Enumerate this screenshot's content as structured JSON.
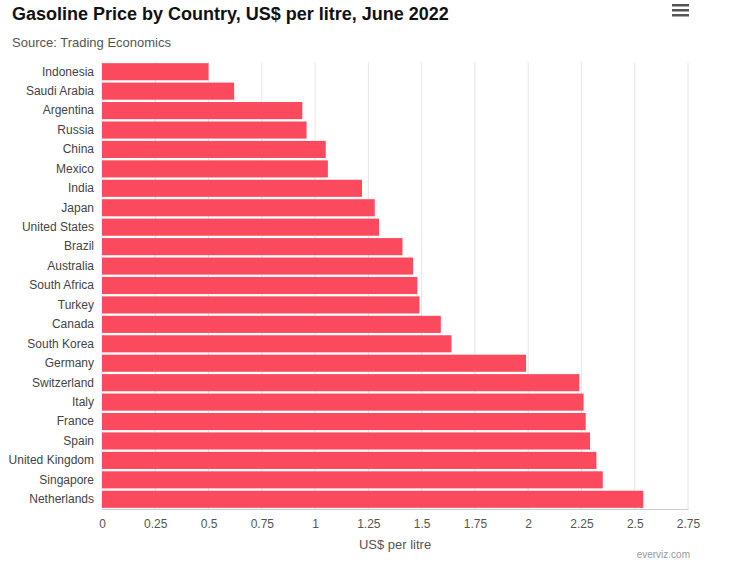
{
  "chart_data": {
    "type": "bar",
    "orientation": "horizontal",
    "title": "Gasoline Price by Country, US$ per litre, June 2022",
    "subtitle": "Source: Trading Economics",
    "x_label": "US$ per litre",
    "credit": "everviz.com",
    "categories": [
      "Indonesia",
      "Saudi Arabia",
      "Argentina",
      "Russia",
      "China",
      "Mexico",
      "India",
      "Japan",
      "United States",
      "Brazil",
      "Australia",
      "South Africa",
      "Turkey",
      "Canada",
      "South Korea",
      "Germany",
      "Switzerland",
      "Italy",
      "France",
      "Spain",
      "United Kingdom",
      "Singapore",
      "Netherlands"
    ],
    "values": [
      0.5,
      0.62,
      0.94,
      0.96,
      1.05,
      1.06,
      1.22,
      1.28,
      1.3,
      1.41,
      1.46,
      1.48,
      1.49,
      1.59,
      1.64,
      1.99,
      2.24,
      2.26,
      2.27,
      2.29,
      2.32,
      2.35,
      2.54
    ],
    "color": "#fb4a5e",
    "xlim": [
      0,
      2.75
    ],
    "xticks": [
      0,
      0.25,
      0.5,
      0.75,
      1,
      1.25,
      1.5,
      1.75,
      2,
      2.25,
      2.5,
      2.75
    ],
    "grid": true
  }
}
